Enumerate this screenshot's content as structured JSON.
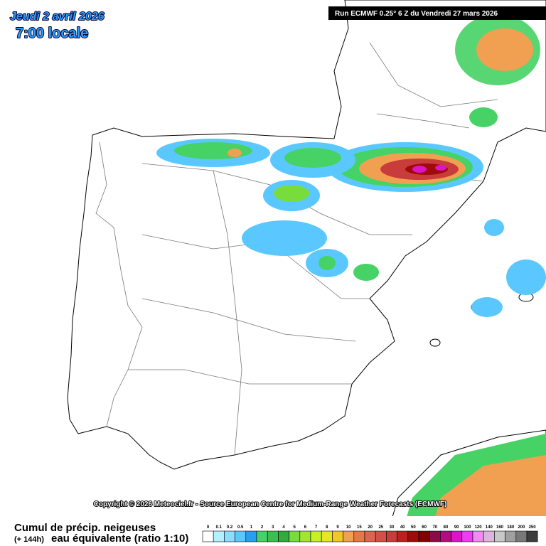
{
  "header": {
    "date": "Jeudi 2 avril 2026",
    "time": "7:00 locale",
    "run": "Run ECMWF 0.25° 6 Z du Vendredi 27 mars 2026"
  },
  "copyright": "Copyright © 2026 Meteociel.fr - Source European Centre for Medium-Range Weather Forecasts (ECMWF)",
  "legend": {
    "title": "Cumul de précip. neigeuses",
    "lead": "(+ 144h)",
    "subtitle": "eau équivalente (ratio 1:10)",
    "steps": [
      {
        "label": "0",
        "color": "#ffffff"
      },
      {
        "label": "0.1",
        "color": "#b4f0ff"
      },
      {
        "label": "0.2",
        "color": "#8cdcff"
      },
      {
        "label": "0.5",
        "color": "#5ac8ff"
      },
      {
        "label": "1",
        "color": "#28a0f0"
      },
      {
        "label": "2",
        "color": "#46d264"
      },
      {
        "label": "3",
        "color": "#3cbe50"
      },
      {
        "label": "4",
        "color": "#32aa3c"
      },
      {
        "label": "5",
        "color": "#78dc3c"
      },
      {
        "label": "6",
        "color": "#a0e632"
      },
      {
        "label": "7",
        "color": "#c8f028"
      },
      {
        "label": "8",
        "color": "#e6e628"
      },
      {
        "label": "9",
        "color": "#f0c828"
      },
      {
        "label": "10",
        "color": "#f0a050"
      },
      {
        "label": "15",
        "color": "#e67846"
      },
      {
        "label": "20",
        "color": "#dc6450"
      },
      {
        "label": "25",
        "color": "#d25046"
      },
      {
        "label": "30",
        "color": "#c83c3c"
      },
      {
        "label": "40",
        "color": "#be1e1e"
      },
      {
        "label": "50",
        "color": "#a00a0a"
      },
      {
        "label": "60",
        "color": "#820000"
      },
      {
        "label": "70",
        "color": "#8c0a46"
      },
      {
        "label": "80",
        "color": "#b40a82"
      },
      {
        "label": "90",
        "color": "#dc14c8"
      },
      {
        "label": "100",
        "color": "#f03cf0"
      },
      {
        "label": "120",
        "color": "#f08cf0"
      },
      {
        "label": "140",
        "color": "#dcb4dc"
      },
      {
        "label": "160",
        "color": "#c8c8c8"
      },
      {
        "label": "180",
        "color": "#a0a0a0"
      },
      {
        "label": "200",
        "color": "#787878"
      },
      {
        "label": "250",
        "color": "#3c3c3c"
      }
    ]
  }
}
